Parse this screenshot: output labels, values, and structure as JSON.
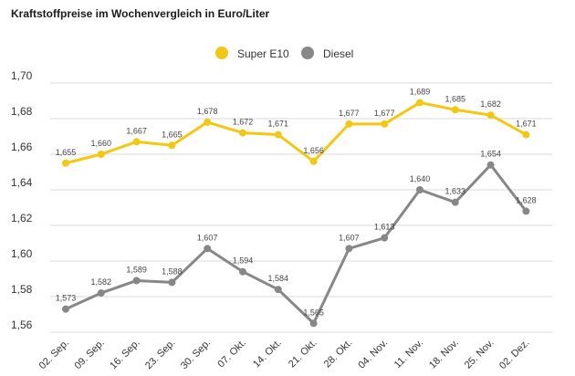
{
  "chart_data": {
    "type": "line",
    "title": "Kraftstoffpreise im Wochenvergleich in Euro/Liter",
    "xlabel": "",
    "ylabel": "",
    "categories": [
      "02. Sep.",
      "09. Sep.",
      "16. Sep.",
      "23. Sep.",
      "30. Sep.",
      "07. Okt.",
      "14. Okt.",
      "21. Okt.",
      "28. Okt.",
      "04. Nov.",
      "11. Nov.",
      "18. Nov.",
      "25. Nov.",
      "02. Dez."
    ],
    "ylim": [
      1.56,
      1.7
    ],
    "yticks": [
      "1,56",
      "1,58",
      "1,60",
      "1,62",
      "1,64",
      "1,66",
      "1,68",
      "1,70"
    ],
    "grid": true,
    "legend": "top-center",
    "series": [
      {
        "name": "Super E10",
        "color": "#f2c811",
        "values": [
          1.655,
          1.66,
          1.667,
          1.665,
          1.678,
          1.672,
          1.671,
          1.656,
          1.677,
          1.677,
          1.689,
          1.685,
          1.682,
          1.671
        ],
        "labels": [
          "1,655",
          "1,660",
          "1,667",
          "1,665",
          "1,678",
          "1,672",
          "1,671",
          "1,656",
          "1,677",
          "1,677",
          "1,689",
          "1,685",
          "1,682",
          "1,671"
        ]
      },
      {
        "name": "Diesel",
        "color": "#878787",
        "values": [
          1.573,
          1.582,
          1.589,
          1.588,
          1.607,
          1.594,
          1.584,
          1.565,
          1.607,
          1.613,
          1.64,
          1.633,
          1.654,
          1.628
        ],
        "labels": [
          "1,573",
          "1,582",
          "1,589",
          "1,588",
          "1,607",
          "1,594",
          "1,584",
          "1,565",
          "1,607",
          "1,613",
          "1,640",
          "1,633",
          "1,654",
          "1,628"
        ]
      }
    ]
  }
}
